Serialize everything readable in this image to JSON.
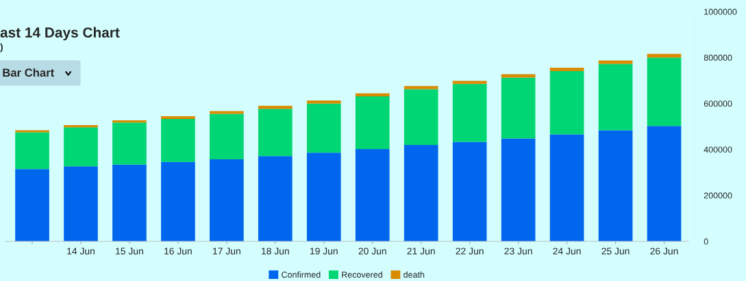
{
  "chart_data": {
    "type": "bar",
    "title": "ast 14 Days Chart",
    "subtitle": ")",
    "annotations": [
      "Bar Chart"
    ],
    "categories": [
      null,
      "14 Jun",
      "15 Jun",
      "16 Jun",
      "17 Jun",
      "18 Jun",
      "19 Jun",
      "20 Jun",
      "21 Jun",
      "22 Jun",
      "23 Jun",
      "24 Jun",
      "25 Jun",
      "26 Jun"
    ],
    "stacked": true,
    "series": [
      {
        "name": "Confirmed",
        "color": "#0066ee",
        "values": [
          315000,
          327000,
          334000,
          346000,
          357000,
          371000,
          386000,
          402000,
          420000,
          433000,
          448000,
          466000,
          484000,
          502000
        ]
      },
      {
        "name": "Recovered",
        "color": "#00d673",
        "values": [
          160000,
          169000,
          183000,
          187000,
          198000,
          206000,
          214000,
          229000,
          242000,
          252000,
          265000,
          275000,
          288000,
          298000
        ]
      },
      {
        "name": "death",
        "color": "#d98c00",
        "values": [
          9000,
          10000,
          10000,
          12000,
          12000,
          13000,
          13000,
          13000,
          14000,
          14000,
          15000,
          15000,
          15000,
          16000
        ]
      }
    ],
    "ylim": [
      0,
      1000000
    ],
    "yticks": [
      0,
      200000,
      400000,
      600000,
      800000,
      1000000
    ],
    "grid": false,
    "legend": "bottom"
  }
}
